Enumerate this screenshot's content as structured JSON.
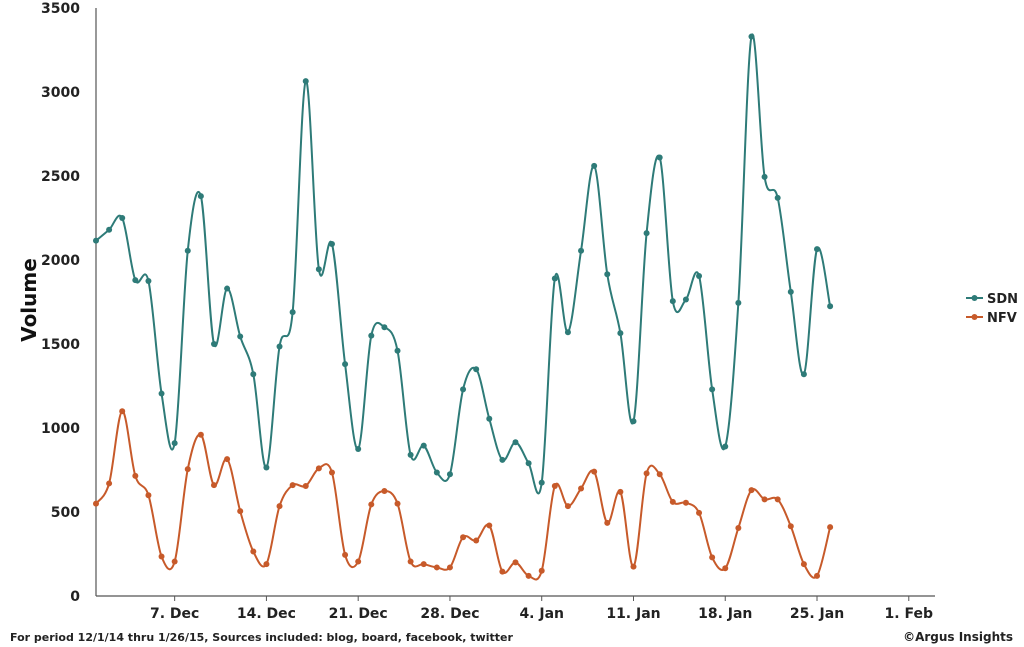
{
  "chart_data": {
    "type": "line",
    "ylabel": "Volume",
    "ylim": [
      0,
      3500
    ],
    "y_ticks": [
      "0",
      "500",
      "1000",
      "1500",
      "2000",
      "2500",
      "3000",
      "3500"
    ],
    "x_range": [
      "2014-12-01",
      "2015-02-03"
    ],
    "x_ticks": [
      {
        "date": "2014-12-07",
        "label": "7. Dec"
      },
      {
        "date": "2014-12-14",
        "label": "14. Dec"
      },
      {
        "date": "2014-12-21",
        "label": "21. Dec"
      },
      {
        "date": "2014-12-28",
        "label": "28. Dec"
      },
      {
        "date": "2015-01-04",
        "label": "4. Jan"
      },
      {
        "date": "2015-01-11",
        "label": "11. Jan"
      },
      {
        "date": "2015-01-18",
        "label": "18. Jan"
      },
      {
        "date": "2015-01-25",
        "label": "25. Jan"
      },
      {
        "date": "2015-02-01",
        "label": "1. Feb"
      }
    ],
    "legend_position": "right",
    "grid": false,
    "x_dates": [
      "2014-12-01",
      "2014-12-02",
      "2014-12-03",
      "2014-12-04",
      "2014-12-05",
      "2014-12-06",
      "2014-12-07",
      "2014-12-08",
      "2014-12-09",
      "2014-12-10",
      "2014-12-11",
      "2014-12-12",
      "2014-12-13",
      "2014-12-14",
      "2014-12-15",
      "2014-12-16",
      "2014-12-17",
      "2014-12-18",
      "2014-12-19",
      "2014-12-20",
      "2014-12-21",
      "2014-12-22",
      "2014-12-23",
      "2014-12-24",
      "2014-12-25",
      "2014-12-26",
      "2014-12-27",
      "2014-12-28",
      "2014-12-29",
      "2014-12-30",
      "2014-12-31",
      "2015-01-01",
      "2015-01-02",
      "2015-01-03",
      "2015-01-04",
      "2015-01-05",
      "2015-01-06",
      "2015-01-07",
      "2015-01-08",
      "2015-01-09",
      "2015-01-10",
      "2015-01-11",
      "2015-01-12",
      "2015-01-13",
      "2015-01-14",
      "2015-01-15",
      "2015-01-16",
      "2015-01-17",
      "2015-01-18",
      "2015-01-19",
      "2015-01-20",
      "2015-01-21",
      "2015-01-22",
      "2015-01-23",
      "2015-01-24",
      "2015-01-25",
      "2015-01-26"
    ],
    "series": [
      {
        "name": "SDN",
        "color": "#2e7b78",
        "values": [
          2115,
          2180,
          2250,
          1880,
          1875,
          1205,
          910,
          2055,
          2380,
          1500,
          1830,
          1545,
          1320,
          765,
          1485,
          1690,
          3065,
          1945,
          2095,
          1380,
          875,
          1550,
          1600,
          1460,
          840,
          895,
          735,
          725,
          1230,
          1350,
          1055,
          810,
          915,
          790,
          675,
          1890,
          1570,
          2055,
          2560,
          1915,
          1565,
          1040,
          2160,
          2610,
          1755,
          1765,
          1905,
          1230,
          890,
          1745,
          3330,
          2495,
          2370,
          1810,
          1320,
          2065,
          1725
        ]
      },
      {
        "name": "NFV",
        "color": "#c75a2a",
        "values": [
          550,
          670,
          1100,
          715,
          600,
          235,
          205,
          755,
          960,
          660,
          815,
          505,
          265,
          190,
          535,
          660,
          655,
          760,
          735,
          245,
          205,
          545,
          625,
          550,
          205,
          190,
          170,
          170,
          350,
          330,
          420,
          145,
          200,
          120,
          150,
          655,
          535,
          640,
          740,
          435,
          620,
          175,
          730,
          725,
          560,
          555,
          495,
          230,
          165,
          405,
          630,
          575,
          575,
          415,
          190,
          120,
          410
        ]
      }
    ],
    "footer": "For period 12/1/14 thru 1/26/15, Sources included: blog, board, facebook, twitter",
    "credit": "©Argus Insights"
  }
}
